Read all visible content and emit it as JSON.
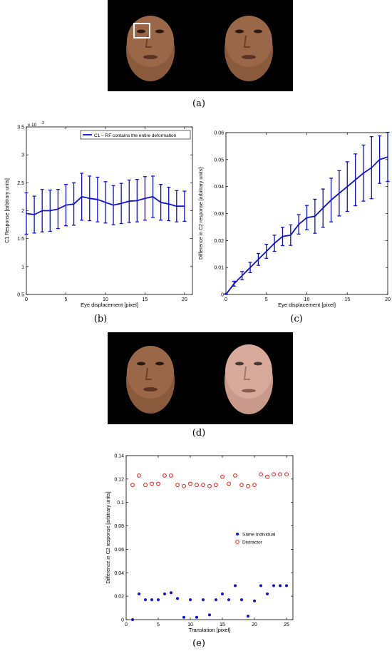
{
  "captions": {
    "a": "(a)",
    "b": "(b)",
    "c": "(c)",
    "d": "(d)",
    "e": "(e)"
  },
  "colors": {
    "series_blue": "#1010d0",
    "distractor_red": "#e00000",
    "face_brown": "#8a5a3c",
    "face_pink": "#c99a8c",
    "roi_box": "#ffffff"
  },
  "chart_data": [
    {
      "id": "b",
      "type": "line",
      "xlabel": "Eye displacement [pixel]",
      "ylabel": "C1 Response [arbitrary units]",
      "exponent_label": "x 10",
      "exponent_power": "-3",
      "xlim": [
        0,
        21
      ],
      "ylim": [
        0.5,
        3.5
      ],
      "xticks": [
        0,
        5,
        10,
        15,
        20
      ],
      "yticks": [
        0.5,
        1,
        1.5,
        2,
        2.5,
        3,
        3.5
      ],
      "ytick_labels": [
        "0.5",
        "1",
        "1.5",
        "2",
        "2.5",
        "3",
        "3.5"
      ],
      "legend": "upper-right",
      "series": [
        {
          "name": "C1 – RF contains the entire deformation",
          "x": [
            0,
            1,
            2,
            3,
            4,
            5,
            6,
            7,
            8,
            9,
            10,
            11,
            12,
            13,
            14,
            15,
            16,
            17,
            18,
            19,
            20
          ],
          "y": [
            1.95,
            1.93,
            2.0,
            2.0,
            2.03,
            2.1,
            2.12,
            2.25,
            2.22,
            2.2,
            2.15,
            2.1,
            2.13,
            2.17,
            2.18,
            2.22,
            2.25,
            2.15,
            2.12,
            2.08,
            2.08
          ],
          "err": [
            0.37,
            0.33,
            0.38,
            0.37,
            0.35,
            0.37,
            0.38,
            0.42,
            0.4,
            0.4,
            0.37,
            0.35,
            0.36,
            0.38,
            0.38,
            0.39,
            0.37,
            0.32,
            0.3,
            0.28,
            0.27
          ]
        }
      ]
    },
    {
      "id": "c",
      "type": "line",
      "xlabel": "Eye displacement [pixel]",
      "ylabel": "Difference in C2 response [arbitrary units]",
      "xlim": [
        0,
        20
      ],
      "ylim": [
        0,
        0.06
      ],
      "xticks": [
        0,
        5,
        10,
        15,
        20
      ],
      "xtick_labels": [
        "0",
        "5",
        "10",
        "15",
        "20"
      ],
      "yticks": [
        0,
        0.01,
        0.02,
        0.03,
        0.04,
        0.05,
        0.06
      ],
      "ytick_labels": [
        "0",
        "0.01",
        "0.02",
        "0.03",
        "0.04",
        "0.05",
        "0.06"
      ],
      "series": [
        {
          "x": [
            0,
            1,
            2,
            3,
            4,
            5,
            6,
            7,
            8,
            9,
            10,
            11,
            12,
            13,
            14,
            15,
            16,
            17,
            18,
            19,
            20
          ],
          "y": [
            0,
            0.004,
            0.007,
            0.01,
            0.013,
            0.016,
            0.019,
            0.0215,
            0.022,
            0.026,
            0.0285,
            0.029,
            0.032,
            0.035,
            0.0375,
            0.04,
            0.0425,
            0.045,
            0.047,
            0.05,
            0.051
          ],
          "err": [
            0.0003,
            0.0009,
            0.0015,
            0.0019,
            0.0022,
            0.0026,
            0.003,
            0.0034,
            0.0038,
            0.0036,
            0.0045,
            0.0063,
            0.0071,
            0.0081,
            0.0084,
            0.0092,
            0.0096,
            0.0104,
            0.0115,
            0.0088,
            0.0091
          ]
        }
      ]
    },
    {
      "id": "e",
      "type": "scatter",
      "xlabel": "Translation [pixel]",
      "ylabel": "Difference in C2 response [arbitrary units]",
      "xlim": [
        0,
        26
      ],
      "ylim": [
        0,
        0.14
      ],
      "xticks": [
        0,
        5,
        10,
        15,
        20,
        25
      ],
      "yticks": [
        0,
        0.02,
        0.04,
        0.06,
        0.08,
        0.1,
        0.12,
        0.14
      ],
      "ytick_labels": [
        "0",
        "0.02",
        "0.04",
        "0.06",
        "0.08",
        "0.1",
        "0.12",
        "0.14"
      ],
      "legend": "right",
      "series": [
        {
          "name": "Same Individual",
          "marker": "filled-dot",
          "x": [
            1,
            2,
            3,
            4,
            5,
            6,
            7,
            8,
            9,
            10,
            11,
            12,
            13,
            14,
            15,
            16,
            17,
            18,
            19,
            20,
            21,
            22,
            23,
            24,
            25
          ],
          "y": [
            0,
            0.022,
            0.017,
            0.017,
            0.017,
            0.022,
            0.023,
            0.018,
            0.002,
            0.017,
            0.002,
            0.017,
            0.004,
            0.017,
            0.022,
            0.017,
            0.029,
            0.017,
            0.003,
            0.016,
            0.029,
            0.022,
            0.029,
            0.029,
            0.029
          ]
        },
        {
          "name": "Distractor",
          "marker": "open-circle",
          "x": [
            1,
            2,
            3,
            4,
            5,
            6,
            7,
            8,
            9,
            10,
            11,
            12,
            13,
            14,
            15,
            16,
            17,
            18,
            19,
            20,
            21,
            22,
            23,
            24,
            25
          ],
          "y": [
            0.115,
            0.123,
            0.115,
            0.116,
            0.116,
            0.123,
            0.123,
            0.115,
            0.114,
            0.116,
            0.115,
            0.115,
            0.114,
            0.115,
            0.122,
            0.116,
            0.123,
            0.115,
            0.114,
            0.115,
            0.124,
            0.122,
            0.124,
            0.124,
            0.124
          ]
        }
      ]
    }
  ]
}
